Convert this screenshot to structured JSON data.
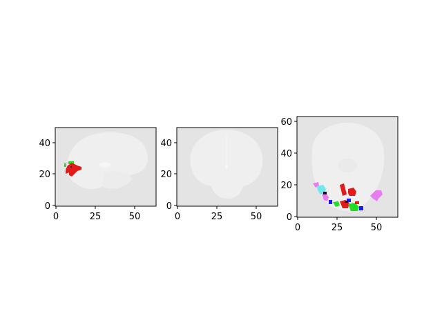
{
  "figure": {
    "panels": [
      {
        "view": "sagittal",
        "x_ticks": [
          "0",
          "25",
          "50"
        ],
        "y_ticks": [
          "0",
          "20",
          "40"
        ],
        "xlim": [
          0,
          64
        ],
        "ylim": [
          0,
          50
        ]
      },
      {
        "view": "coronal",
        "x_ticks": [
          "0",
          "25",
          "50"
        ],
        "y_ticks": [
          "0",
          "20",
          "40"
        ],
        "xlim": [
          0,
          64
        ],
        "ylim": [
          0,
          50
        ]
      },
      {
        "view": "axial",
        "x_ticks": [
          "0",
          "25",
          "50"
        ],
        "y_ticks": [
          "0",
          "20",
          "40",
          "60"
        ],
        "xlim": [
          0,
          64
        ],
        "ylim": [
          0,
          64
        ]
      }
    ],
    "colors": {
      "background": "#e4e4e4",
      "brain": "#efefef",
      "red": "#e41a1a",
      "green": "#22dd22",
      "blue": "#1a1aee",
      "cyan": "#70e8ee",
      "magenta": "#e67ef0",
      "black": "#111111"
    }
  }
}
